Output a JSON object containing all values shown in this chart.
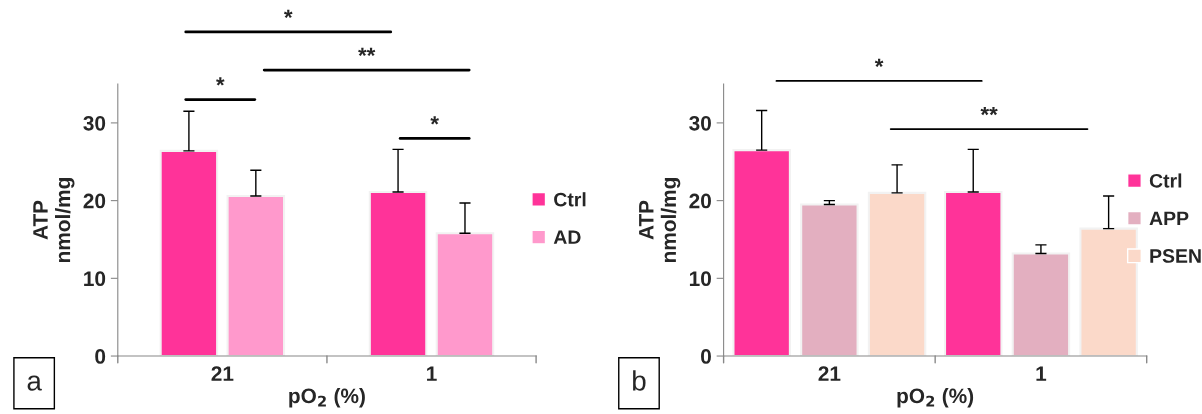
{
  "chart_data": [
    {
      "type": "bar",
      "categories": [
        "21",
        "1"
      ],
      "xlabel": "pO$_{2}$ (%)",
      "ylabel": "ATP\nnmol/mg",
      "ylim": [
        0,
        35
      ],
      "yticks": [
        0,
        10,
        20,
        30
      ],
      "legend": "right",
      "grid": false,
      "series": [
        {
          "name": "Ctrl",
          "color": "#ff3399",
          "values": [
            26.4,
            21.1
          ],
          "errors": [
            [
              26.4,
              31.5
            ],
            [
              21.1,
              26.6
            ]
          ]
        },
        {
          "name": "AD",
          "color": "#ff99cc",
          "values": [
            20.6,
            15.8
          ],
          "errors": [
            [
              20.6,
              23.9
            ],
            [
              15.8,
              19.7
            ]
          ]
        }
      ],
      "annotations": [
        "*",
        "**",
        "*",
        "*",
        "a"
      ]
    },
    {
      "type": "bar",
      "categories": [
        "21",
        "1"
      ],
      "xlabel": "pO$_{2}$ (%)",
      "ylabel": "ATP\nnmol/mg",
      "ylim": [
        0,
        35
      ],
      "yticks": [
        0,
        10,
        20,
        30
      ],
      "legend": "right",
      "grid": false,
      "series": [
        {
          "name": "Ctrl",
          "color": "#ff3399",
          "values": [
            26.5,
            21.1
          ],
          "errors": [
            [
              26.5,
              31.6
            ],
            [
              21.1,
              26.6
            ]
          ]
        },
        {
          "name": "APP",
          "color": "#e3afc0",
          "values": [
            19.5,
            13.2
          ],
          "errors": [
            [
              19.5,
              20.0
            ],
            [
              13.2,
              14.3
            ]
          ]
        },
        {
          "name": "PSEN",
          "color": "#fbd9c9",
          "values": [
            21.0,
            16.4
          ],
          "errors": [
            [
              21.0,
              24.6
            ],
            [
              16.4,
              20.6
            ]
          ]
        }
      ],
      "annotations": [
        "*",
        "**",
        "b"
      ]
    }
  ]
}
